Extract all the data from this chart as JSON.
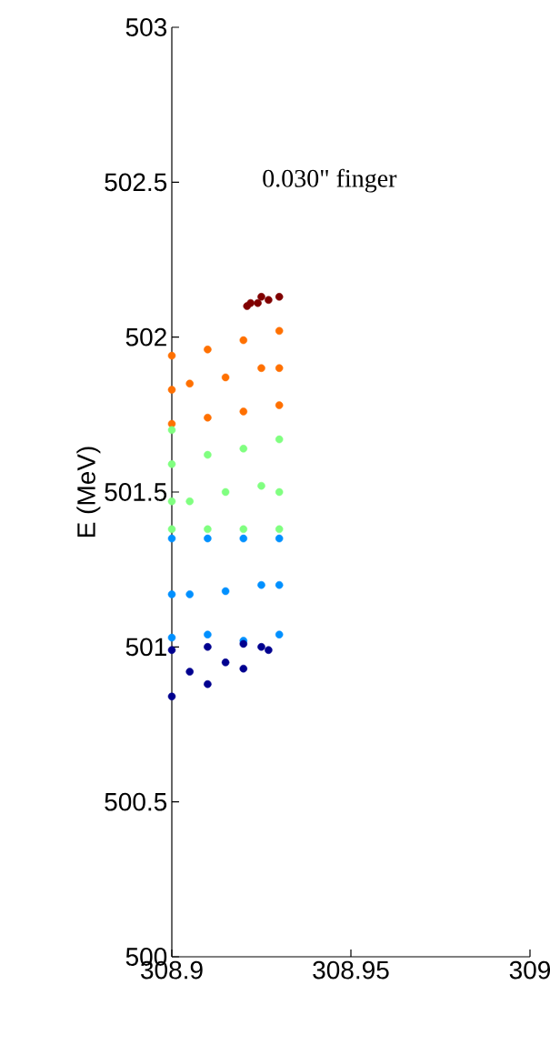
{
  "chart_data": {
    "type": "scatter",
    "ylabel": "E (MeV)",
    "annotations": [
      "0.030\" finger"
    ],
    "xlim": [
      308.9,
      309.0
    ],
    "xticks": [
      308.9,
      308.95,
      309
    ],
    "ylim": [
      500,
      503
    ],
    "yticks": [
      500,
      500.5,
      501,
      501.5,
      502,
      502.5,
      503
    ],
    "series": [
      {
        "color": "#800000",
        "x": [
          308.921,
          308.922,
          308.924,
          308.925,
          308.927,
          308.93
        ],
        "values": [
          502.1,
          502.11,
          502.11,
          502.13,
          502.12,
          502.13
        ]
      },
      {
        "color": "#ff7000",
        "x": [
          308.9,
          308.9,
          308.93,
          308.93,
          308.91,
          308.91,
          308.92,
          308.92,
          308.905,
          308.915,
          308.925,
          308.93,
          308.9
        ],
        "values": [
          501.94,
          501.72,
          502.02,
          501.78,
          501.96,
          501.74,
          501.99,
          501.76,
          501.85,
          501.87,
          501.9,
          501.9,
          501.83
        ]
      },
      {
        "color": "#80ff80",
        "x": [
          308.9,
          308.9,
          308.9,
          308.93,
          308.93,
          308.91,
          308.92,
          308.91,
          308.92,
          308.905,
          308.915,
          308.925,
          308.93,
          308.9
        ],
        "values": [
          501.7,
          501.59,
          501.38,
          501.67,
          501.38,
          501.62,
          501.64,
          501.38,
          501.38,
          501.47,
          501.5,
          501.52,
          501.5,
          501.47
        ]
      },
      {
        "color": "#0090ff",
        "x": [
          308.9,
          308.9,
          308.93,
          308.93,
          308.91,
          308.92,
          308.91,
          308.92,
          308.905,
          308.915,
          308.925,
          308.9,
          308.93
        ],
        "values": [
          501.35,
          501.03,
          501.35,
          501.04,
          501.35,
          501.35,
          501.04,
          501.02,
          501.17,
          501.18,
          501.2,
          501.17,
          501.2
        ]
      },
      {
        "color": "#00008f",
        "x": [
          308.9,
          308.9,
          308.91,
          308.91,
          308.92,
          308.92,
          308.925,
          308.927,
          308.905,
          308.915
        ],
        "values": [
          500.99,
          500.84,
          501.0,
          500.88,
          501.01,
          500.93,
          501.0,
          500.99,
          500.92,
          500.95
        ]
      }
    ]
  }
}
